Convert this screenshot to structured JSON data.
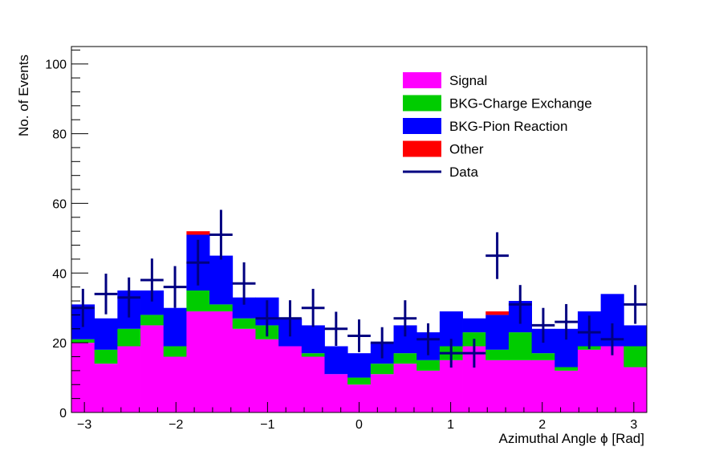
{
  "chart_data": {
    "type": "bar",
    "stacked": true,
    "xlabel": "Azimuthal Angle  ϕ [Rad]",
    "ylabel": "No. of Events",
    "xlim": [
      -3.1416,
      3.1416
    ],
    "ylim": [
      0,
      105
    ],
    "x_ticks": [
      -3,
      -2,
      -1,
      0,
      1,
      2,
      3
    ],
    "x_tick_labels": [
      "−3",
      "−2",
      "−1",
      "0",
      "1",
      "2",
      "3"
    ],
    "y_ticks": [
      0,
      20,
      40,
      60,
      80,
      100
    ],
    "y_tick_labels": [
      "0",
      "20",
      "40",
      "60",
      "80",
      "100"
    ],
    "n_bins": 25,
    "legend_position": "top-right",
    "series": [
      {
        "name": "Signal",
        "color": "#ff00ff",
        "values": [
          20,
          14,
          19,
          25,
          16,
          29,
          29,
          24,
          21,
          19,
          16,
          11,
          8,
          11,
          14,
          12,
          15,
          19,
          15,
          15,
          15,
          12,
          18,
          19,
          13
        ]
      },
      {
        "name": "BKG-Charge Exchange",
        "color": "#00cc00",
        "values": [
          1,
          4,
          5,
          3,
          3,
          6,
          2,
          3,
          4,
          0,
          1,
          0,
          2,
          3,
          3,
          3,
          4,
          4,
          3,
          8,
          2,
          1,
          1,
          0,
          6
        ]
      },
      {
        "name": "BKG-Pion Reaction",
        "color": "#0000ff",
        "values": [
          10,
          9,
          11,
          7,
          11,
          16,
          14,
          6,
          8,
          8,
          8,
          8,
          7,
          6,
          8,
          8,
          10,
          4,
          10,
          9,
          7,
          11,
          10,
          15,
          6
        ]
      },
      {
        "name": "Other",
        "color": "#ff0000",
        "values": [
          0,
          0,
          0,
          0,
          0,
          1,
          0,
          0,
          0,
          0,
          0,
          0,
          0,
          0,
          0,
          0,
          0,
          0,
          1,
          0,
          0,
          0,
          0,
          0,
          0
        ]
      }
    ],
    "data_points": {
      "name": "Data",
      "color": "#000080",
      "values": [
        30,
        34,
        33,
        38,
        36,
        43,
        51,
        37,
        27,
        27,
        30,
        24,
        22,
        20,
        27,
        21,
        17,
        17,
        45,
        31,
        25,
        26,
        23,
        21,
        31
      ]
    }
  }
}
